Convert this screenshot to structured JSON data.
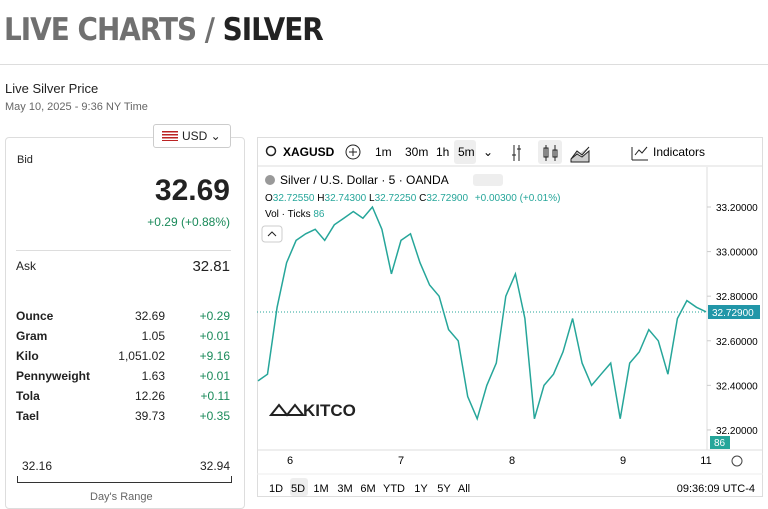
{
  "header": {
    "title_part1": "LIVE CHARTS /",
    "title_part2": "SILVER",
    "subtitle": "Live Silver Price",
    "timestamp": "May 10, 2025 - 9:36 NY Time"
  },
  "price_panel": {
    "currency": "USD",
    "bid_label": "Bid",
    "bid": "32.69",
    "change": "+0.29 (+0.88%)",
    "ask_label": "Ask",
    "ask": "32.81",
    "rows": [
      [
        "Ounce",
        "32.69",
        "+0.29"
      ],
      [
        "Gram",
        "1.05",
        "+0.01"
      ],
      [
        "Kilo",
        "1,051.02",
        "+9.16"
      ],
      [
        "Pennyweight",
        "1.63",
        "+0.01"
      ],
      [
        "Tola",
        "12.26",
        "+0.11"
      ],
      [
        "Tael",
        "39.73",
        "+0.35"
      ]
    ],
    "range_low": "32.16",
    "range_high": "32.94",
    "range_label": "Day's Range"
  },
  "toolbar": {
    "symbol": "XAGUSD",
    "intervals": [
      "1m",
      "30m",
      "1h",
      "5m"
    ],
    "indicators": "Indicators"
  },
  "chart": {
    "type": "line",
    "legend": "Silver / U.S. Dollar · 5 · OANDA",
    "ohlc": {
      "o": "32.72550",
      "h": "32.74300",
      "l": "32.72250",
      "c": "32.72900",
      "chg": "+0.00300 (+0.01%)"
    },
    "volume_label": "Vol · Ticks",
    "volume": "86",
    "color": "#26a69a",
    "values": [
      32.42,
      32.45,
      32.75,
      32.95,
      33.05,
      33.08,
      33.1,
      33.05,
      33.12,
      33.15,
      33.18,
      33.15,
      33.2,
      33.1,
      32.9,
      33.05,
      33.08,
      32.95,
      32.85,
      32.8,
      32.65,
      32.6,
      32.35,
      32.25,
      32.4,
      32.5,
      32.8,
      32.9,
      32.7,
      32.25,
      32.4,
      32.45,
      32.55,
      32.7,
      32.5,
      32.4,
      32.45,
      32.5,
      32.25,
      32.5,
      32.55,
      32.65,
      32.6,
      32.45,
      32.7,
      32.78,
      32.75,
      32.73
    ],
    "ylim": [
      32.11,
      33.366
    ],
    "yticks": [
      {
        "value": 33.2,
        "label": "33.20000"
      },
      {
        "value": 33.0,
        "label": "33.00000"
      },
      {
        "value": 32.8,
        "label": "32.80000"
      },
      {
        "value": 32.6,
        "label": "32.60000"
      },
      {
        "value": 32.4,
        "label": "32.40000"
      },
      {
        "value": 32.2,
        "label": "32.20000"
      }
    ],
    "current_price": {
      "value": 32.729,
      "label": "32.72900"
    },
    "x_labels": [
      "6",
      "7",
      "8",
      "9",
      "11"
    ],
    "watermark": "KITCO"
  },
  "footer": {
    "ranges": [
      "1D",
      "5D",
      "1M",
      "3M",
      "6M",
      "YTD",
      "1Y",
      "5Y",
      "All"
    ],
    "clock": "09:36:09 UTC-4"
  }
}
